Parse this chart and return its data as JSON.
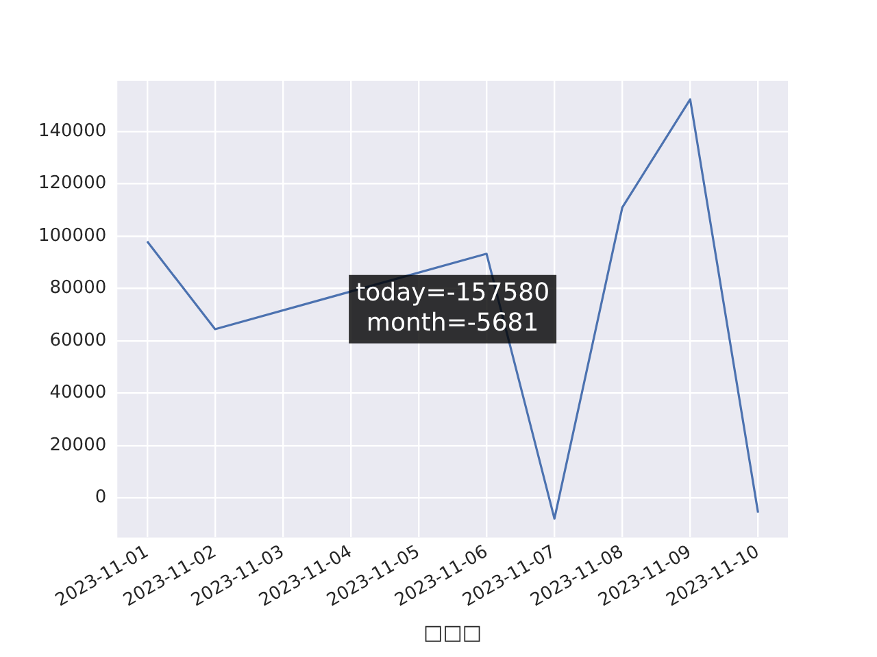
{
  "chart_data": {
    "type": "line",
    "xlabel": "□□□",
    "x": [
      "2023-11-01",
      "2023-11-02",
      "2023-11-06",
      "2023-11-07",
      "2023-11-08",
      "2023-11-09",
      "2023-11-10"
    ],
    "series": [
      {
        "color": "#4c72b0",
        "values": [
          98000,
          64500,
          93300,
          -7900,
          111000,
          152300,
          -5600
        ]
      }
    ],
    "xlim": [
      "2023-10-31T13:26",
      "2023-11-10T10:34"
    ],
    "xticks": [
      "2023-11-01",
      "2023-11-02",
      "2023-11-03",
      "2023-11-04",
      "2023-11-05",
      "2023-11-06",
      "2023-11-07",
      "2023-11-08",
      "2023-11-09",
      "2023-11-10"
    ],
    "ylim": [
      -15100,
      159400
    ],
    "yticks": [
      0,
      20000,
      40000,
      60000,
      80000,
      100000,
      120000,
      140000
    ],
    "grid": true,
    "marker": "none",
    "line_style": "solid",
    "annotations": [
      "today=-157580\nmonth=-5681"
    ]
  }
}
